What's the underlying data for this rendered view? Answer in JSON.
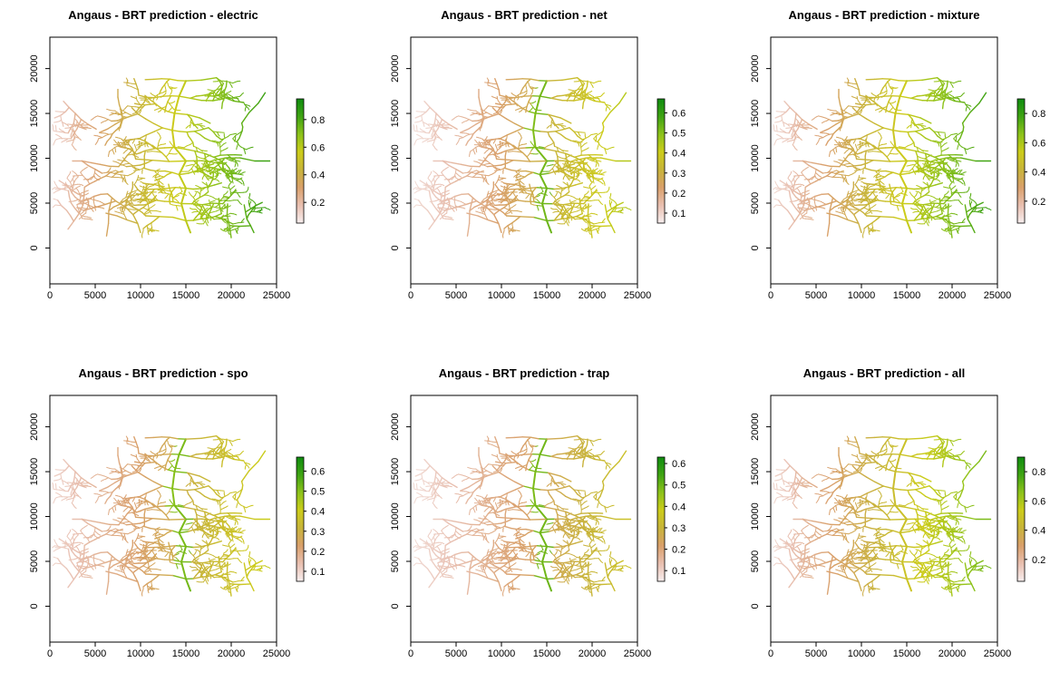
{
  "panels": [
    {
      "title": "Angaus - BRT prediction - electric",
      "legend_ticks": [
        "0.2",
        "0.4",
        "0.6",
        "0.8"
      ],
      "legend_range": [
        0.05,
        0.95
      ]
    },
    {
      "title": "Angaus - BRT prediction - net",
      "legend_ticks": [
        "0.1",
        "0.2",
        "0.3",
        "0.4",
        "0.5",
        "0.6"
      ],
      "legend_range": [
        0.05,
        0.67
      ]
    },
    {
      "title": "Angaus - BRT prediction - mixture",
      "legend_ticks": [
        "0.2",
        "0.4",
        "0.6",
        "0.8"
      ],
      "legend_range": [
        0.05,
        0.9
      ]
    },
    {
      "title": "Angaus - BRT prediction - spo",
      "legend_ticks": [
        "0.1",
        "0.2",
        "0.3",
        "0.4",
        "0.5",
        "0.6"
      ],
      "legend_range": [
        0.05,
        0.67
      ]
    },
    {
      "title": "Angaus - BRT prediction - trap",
      "legend_ticks": [
        "0.1",
        "0.2",
        "0.3",
        "0.4",
        "0.5",
        "0.6"
      ],
      "legend_range": [
        0.05,
        0.63
      ]
    },
    {
      "title": "Angaus - BRT prediction - all",
      "legend_ticks": [
        "0.2",
        "0.4",
        "0.6",
        "0.8"
      ],
      "legend_range": [
        0.05,
        0.9
      ]
    }
  ],
  "axes": {
    "x_ticks": [
      "0",
      "5000",
      "10000",
      "15000",
      "20000",
      "25000"
    ],
    "y_ticks": [
      "0",
      "5000",
      "10000",
      "15000",
      "20000"
    ]
  },
  "colors": {
    "ramp": [
      "#f7eeee",
      "#e8bfb0",
      "#d9a06b",
      "#c8b43a",
      "#cccc1a",
      "#8cc21a",
      "#3fa313",
      "#0f8c0f"
    ]
  },
  "chart_data": [
    {
      "type": "heatmap",
      "title": "Angaus - BRT prediction - electric",
      "xlim": [
        0,
        25000
      ],
      "ylim": [
        -4000,
        23500
      ],
      "value_range": [
        0.05,
        0.95
      ],
      "pattern": "stream network prediction map; high values (green) in east, low values (pink) in central-west"
    },
    {
      "type": "heatmap",
      "title": "Angaus - BRT prediction - net",
      "xlim": [
        0,
        25000
      ],
      "ylim": [
        -4000,
        23500
      ],
      "value_range": [
        0.05,
        0.67
      ],
      "pattern": "stream network prediction map; main stem green, eastern tributaries yellow, western tributaries pink-tan"
    },
    {
      "type": "heatmap",
      "title": "Angaus - BRT prediction - mixture",
      "xlim": [
        0,
        25000
      ],
      "ylim": [
        -4000,
        23500
      ],
      "value_range": [
        0.05,
        0.9
      ],
      "pattern": "stream network prediction map; high values (green) in east, low values in central-west"
    },
    {
      "type": "heatmap",
      "title": "Angaus - BRT prediction - spo",
      "xlim": [
        0,
        25000
      ],
      "ylim": [
        -4000,
        23500
      ],
      "value_range": [
        0.05,
        0.67
      ],
      "pattern": "stream network prediction map; main stem green, east yellow, west tan"
    },
    {
      "type": "heatmap",
      "title": "Angaus - BRT prediction - trap",
      "xlim": [
        0,
        25000
      ],
      "ylim": [
        -4000,
        23500
      ],
      "value_range": [
        0.05,
        0.63
      ],
      "pattern": "stream network prediction map; main stem green, east yellow-tan, west pink"
    },
    {
      "type": "heatmap",
      "title": "Angaus - BRT prediction - all",
      "xlim": [
        0,
        25000
      ],
      "ylim": [
        -4000,
        23500
      ],
      "value_range": [
        0.05,
        0.9
      ],
      "pattern": "stream network prediction map; green-yellow in east, tan-pink in west"
    }
  ]
}
